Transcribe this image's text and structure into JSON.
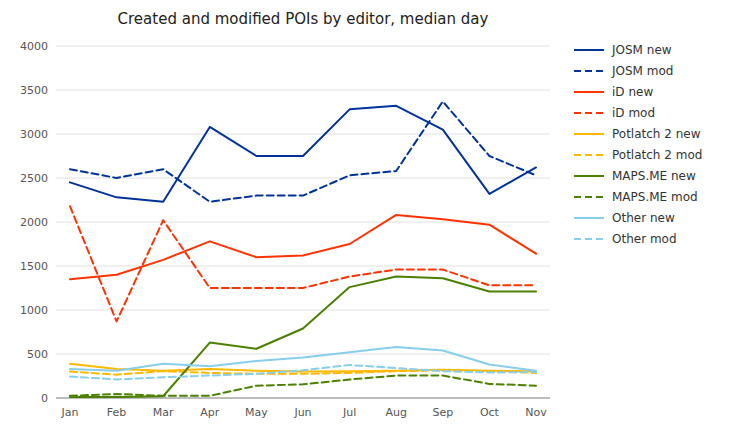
{
  "chart_data": {
    "type": "line",
    "title": "Created and modified POIs by editor, median day",
    "categories": [
      "Jan",
      "Feb",
      "Mar",
      "Apr",
      "May",
      "Jun",
      "Jul",
      "Aug",
      "Sep",
      "Oct",
      "Nov"
    ],
    "series": [
      {
        "name": "JOSM new",
        "color": "#003399",
        "line_style": "solid",
        "values": [
          2450,
          2280,
          2230,
          3080,
          2750,
          2750,
          3280,
          3320,
          3050,
          2320,
          2620
        ]
      },
      {
        "name": "JOSM mod",
        "color": "#003399",
        "line_style": "dashed",
        "values": [
          2600,
          2500,
          2600,
          2230,
          2300,
          2300,
          2530,
          2580,
          3370,
          2750,
          2530
        ]
      },
      {
        "name": "iD new",
        "color": "#FF3300",
        "line_style": "solid",
        "values": [
          1350,
          1400,
          1570,
          1780,
          1600,
          1620,
          1750,
          2080,
          2030,
          1970,
          1640
        ]
      },
      {
        "name": "iD mod",
        "color": "#FF3300",
        "line_style": "dashed",
        "values": [
          2180,
          870,
          2020,
          1250,
          1250,
          1250,
          1380,
          1460,
          1460,
          1280,
          1280
        ]
      },
      {
        "name": "Potlatch 2 new",
        "color": "#FFB800",
        "line_style": "solid",
        "values": [
          390,
          330,
          310,
          330,
          310,
          300,
          305,
          310,
          320,
          310,
          305
        ]
      },
      {
        "name": "Potlatch 2 mod",
        "color": "#FFB800",
        "line_style": "dashed",
        "values": [
          300,
          265,
          305,
          285,
          275,
          275,
          285,
          305,
          315,
          305,
          285
        ]
      },
      {
        "name": "MAPS.ME new",
        "color": "#4C8000",
        "line_style": "solid",
        "values": [
          10,
          10,
          20,
          630,
          560,
          790,
          1260,
          1380,
          1360,
          1210,
          1210
        ]
      },
      {
        "name": "MAPS.ME mod",
        "color": "#4C8000",
        "line_style": "dashed",
        "values": [
          25,
          45,
          25,
          25,
          140,
          155,
          210,
          255,
          255,
          160,
          140
        ]
      },
      {
        "name": "Other new",
        "color": "#87CEEB",
        "line_style": "solid",
        "values": [
          330,
          310,
          390,
          360,
          420,
          460,
          520,
          580,
          540,
          380,
          310
        ]
      },
      {
        "name": "Other mod",
        "color": "#87CEEB",
        "line_style": "dashed",
        "values": [
          245,
          210,
          235,
          255,
          275,
          315,
          375,
          340,
          305,
          290,
          295
        ]
      }
    ],
    "ylim": [
      0,
      4000
    ],
    "yticks": [
      0,
      500,
      1000,
      1500,
      2000,
      2500,
      3000,
      3500,
      4000
    ],
    "grid": true,
    "legend": "right"
  }
}
